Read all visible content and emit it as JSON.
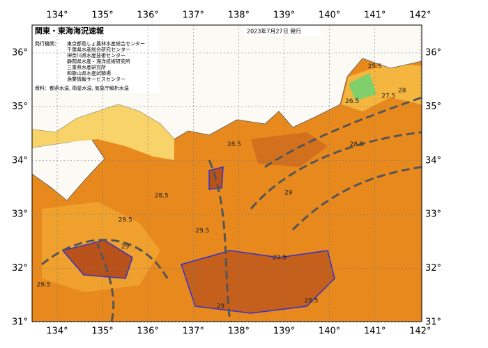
{
  "map": {
    "title": "関東・東海海況速報",
    "issue_date": "2023年7月27日 発行",
    "agencies_label": "発行機関：",
    "agencies": [
      "東京都島しょ農林水産総合センター",
      "千葉県水産総合研究センター",
      "神奈川県水産技術センター",
      "静岡県水産・海洋技術研究所",
      "三重県水産研究所",
      "和歌山県水産試験場",
      "漁業情報サービスセンター"
    ],
    "source": "資料：都県水温, 衛星水温, 気象庁解析水温",
    "lon_ticks": [
      {
        "value": 134,
        "label": "134°"
      },
      {
        "value": 135,
        "label": "135°"
      },
      {
        "value": 136,
        "label": "136°"
      },
      {
        "value": 137,
        "label": "137°"
      },
      {
        "value": 138,
        "label": "138°"
      },
      {
        "value": 139,
        "label": "139°"
      },
      {
        "value": 140,
        "label": "140°"
      },
      {
        "value": 141,
        "label": "141°"
      },
      {
        "value": 142,
        "label": "142°"
      }
    ],
    "lat_ticks": [
      {
        "value": 36,
        "label": "36°"
      },
      {
        "value": 35,
        "label": "35°"
      },
      {
        "value": 34,
        "label": "34°"
      },
      {
        "value": 33,
        "label": "33°"
      },
      {
        "value": 32,
        "label": "32°"
      },
      {
        "value": 31,
        "label": "31°"
      }
    ],
    "contour_labels": [
      {
        "text": "28.5",
        "lon": 137.9,
        "lat": 34.3
      },
      {
        "text": "28.5",
        "lon": 136.3,
        "lat": 33.35
      },
      {
        "text": "29",
        "lon": 139.1,
        "lat": 33.4
      },
      {
        "text": "29.5",
        "lon": 135.5,
        "lat": 32.9
      },
      {
        "text": "29",
        "lon": 135.5,
        "lat": 32.4
      },
      {
        "text": "29.5",
        "lon": 137.2,
        "lat": 32.7
      },
      {
        "text": "28.5",
        "lon": 140.6,
        "lat": 34.3
      },
      {
        "text": "27.5",
        "lon": 141.3,
        "lat": 35.2
      },
      {
        "text": "28",
        "lon": 141.6,
        "lat": 35.3
      },
      {
        "text": "26.5",
        "lon": 140.5,
        "lat": 35.1
      },
      {
        "text": "25.5",
        "lon": 141.0,
        "lat": 35.75
      },
      {
        "text": "29.5",
        "lon": 138.9,
        "lat": 32.2
      },
      {
        "text": "28.5",
        "lon": 139.6,
        "lat": 31.4
      },
      {
        "text": "29",
        "lon": 137.6,
        "lat": 31.3
      },
      {
        "text": "29.5",
        "lon": 133.7,
        "lat": 31.7
      }
    ]
  }
}
